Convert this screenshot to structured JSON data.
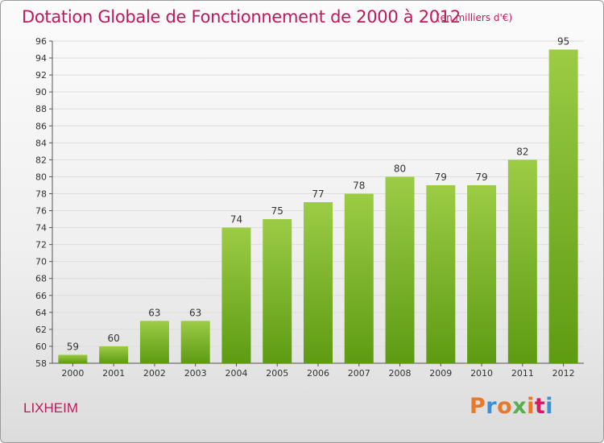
{
  "title": "Dotation Globale de Fonctionnement de 2000 à 2012",
  "subtitle": "(en milliers d'€)",
  "commune": "LIXHEIM",
  "brand": {
    "text": "Proxiti",
    "colors": [
      "#e8792b",
      "#3a8fd6",
      "#e8792b",
      "#55b04a",
      "#e8792b",
      "#d81b60",
      "#3a8fd6"
    ]
  },
  "colors": {
    "title": "#c2185b",
    "bar_top": "#9ccc45",
    "bar_bottom": "#5d9b13",
    "grid": "#dddddd",
    "axis": "#555555"
  },
  "chart_data": {
    "type": "bar",
    "title": "Dotation Globale de Fonctionnement de 2000 à 2012",
    "subtitle": "(en milliers d'€)",
    "categories": [
      "2000",
      "2001",
      "2002",
      "2003",
      "2004",
      "2005",
      "2006",
      "2007",
      "2008",
      "2009",
      "2010",
      "2011",
      "2012"
    ],
    "values": [
      59,
      60,
      63,
      63,
      74,
      75,
      77,
      78,
      80,
      79,
      79,
      82,
      95
    ],
    "ylim": [
      58,
      96
    ],
    "yticks": [
      58,
      60,
      62,
      64,
      66,
      68,
      70,
      72,
      74,
      76,
      78,
      80,
      82,
      84,
      86,
      88,
      90,
      92,
      94,
      96
    ],
    "grid": true,
    "xlabel": "",
    "ylabel": ""
  }
}
